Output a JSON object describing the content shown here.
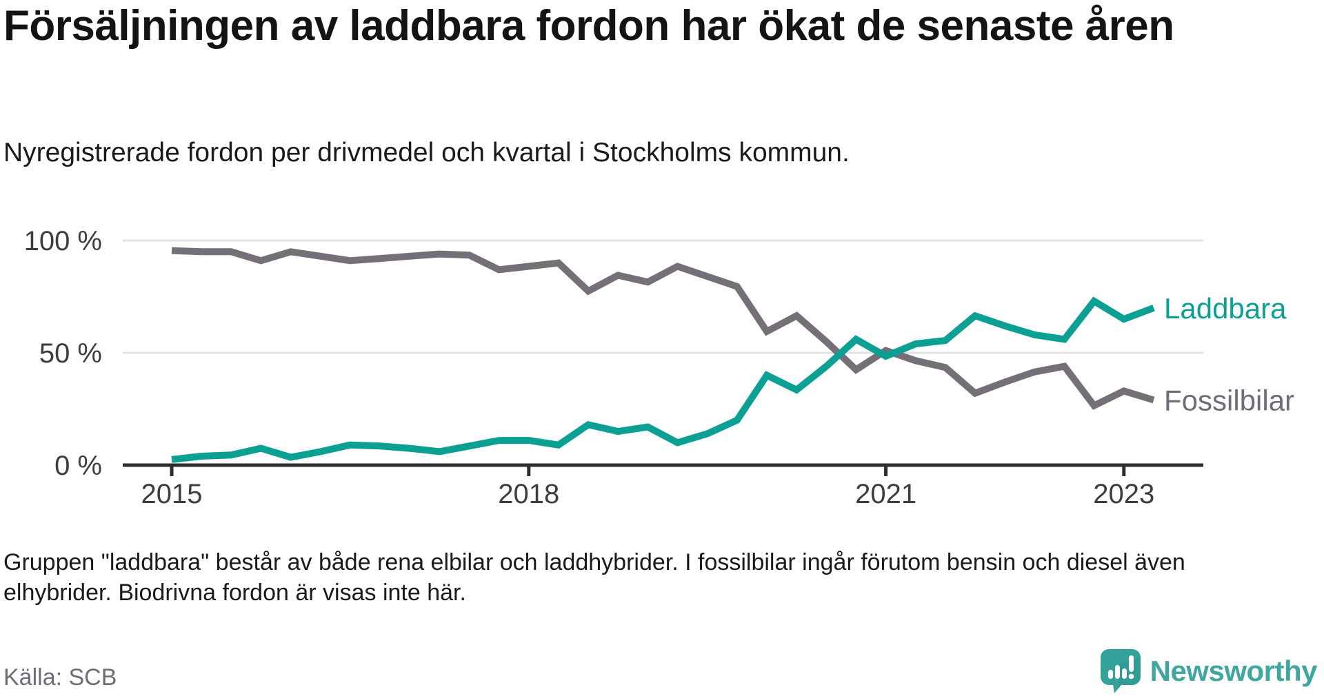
{
  "title": "Försäljningen av laddbara fordon har ökat de senaste åren",
  "subtitle": "Nyregistrerade fordon per drivmedel och kvartal i Stockholms kommun.",
  "footnote_lines": [
    "Gruppen \"laddbara\" består av både rena elbilar och laddhybrider. I fossilbilar ingår förutom bensin och diesel även",
    "elhybrider. Biodrivna fordon är visas inte här."
  ],
  "source": "Källa: SCB",
  "logo_text": "Newsworthy",
  "colors": {
    "laddbara": "#0BA093",
    "fossilbilar": "#757078",
    "fossilbilar_label": "#6F6B77",
    "gridline": "#E2E2E2",
    "axis": "#2D2D2D",
    "tick_label": "#3D3D3D",
    "logo_teal": "#35A39B"
  },
  "chart_data": {
    "type": "line",
    "unit": "%",
    "x_axis": {
      "start_year": 2015,
      "points_per_year": 4,
      "ticks": [
        {
          "year": 2015,
          "label": "2015"
        },
        {
          "year": 2018,
          "label": "2018"
        },
        {
          "year": 2021,
          "label": "2021"
        },
        {
          "year": 2023,
          "label": "2023"
        }
      ]
    },
    "y_axis": {
      "min": 0,
      "max": 100,
      "ticks": [
        {
          "value": 100,
          "label": "100 %"
        },
        {
          "value": 50,
          "label": "50 %"
        },
        {
          "value": 0,
          "label": "0 %"
        }
      ]
    },
    "legend_position": "right-end-labels",
    "series": [
      {
        "name": "Laddbara",
        "color": "#0BA093",
        "label_color": "#0BA093",
        "values": [
          2.5,
          4,
          4.5,
          7.5,
          3.5,
          6,
          9,
          8.5,
          7.5,
          6,
          8.5,
          11,
          11,
          9,
          18,
          15,
          17,
          10,
          14,
          20,
          40,
          33.5,
          44,
          56,
          48.5,
          54,
          55.5,
          66.5,
          62,
          58,
          56,
          73,
          65,
          70
        ]
      },
      {
        "name": "Fossilbilar",
        "color": "#757078",
        "label_color": "#6F6B77",
        "values": [
          95.5,
          95,
          95,
          91,
          95,
          93,
          91,
          92,
          93,
          94,
          93.5,
          87,
          88.5,
          90,
          77.5,
          84.5,
          81.5,
          88.5,
          84,
          79.5,
          59.5,
          66.5,
          55,
          42.5,
          51,
          46.5,
          43.5,
          32,
          37,
          41.5,
          44,
          26.5,
          33,
          29
        ]
      }
    ]
  }
}
